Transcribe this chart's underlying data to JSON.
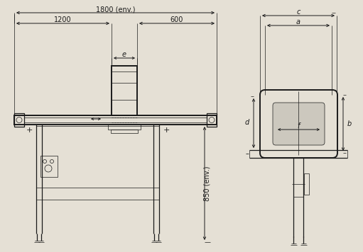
{
  "bg_color": "#e5e0d5",
  "line_color": "#1a1a1a",
  "text_color": "#1a1a1a",
  "fig_width": 5.11,
  "fig_height": 3.56,
  "dpi": 100,
  "labels": {
    "dim_1800": "1800 (env.)",
    "dim_1200": "1200",
    "dim_600": "600",
    "dim_e": "e",
    "dim_850": "850 (env.)",
    "dim_c": "c",
    "dim_a": "a",
    "dim_d": "d",
    "dim_b": "b",
    "dim_f": "f"
  },
  "lw_thin": 0.5,
  "lw_main": 0.9,
  "lw_thick": 1.4
}
